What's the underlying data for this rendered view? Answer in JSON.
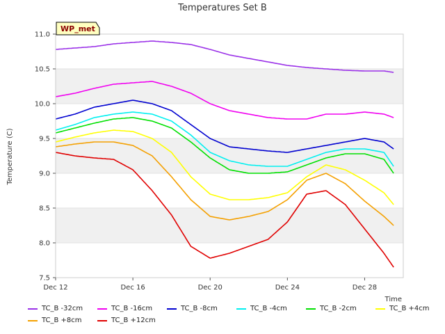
{
  "chart_data": {
    "type": "line",
    "title": "Temperatures Set B",
    "xlabel": "Time",
    "ylabel": "Temperature (C)",
    "annotation": "WP_met",
    "x_tick_labels": [
      "Dec 12",
      "Dec 16",
      "Dec 20",
      "Dec 24",
      "Dec 28"
    ],
    "x_tick_values": [
      0,
      4,
      8,
      12,
      16
    ],
    "xlim": [
      0,
      18
    ],
    "ylim": [
      7.5,
      11.0
    ],
    "y_ticks": [
      7.5,
      8.0,
      8.5,
      9.0,
      9.5,
      10.0,
      10.5,
      11.0
    ],
    "grid": "horizontal bands",
    "legend_position": "bottom",
    "x": [
      0,
      1,
      2,
      3,
      4,
      5,
      6,
      7,
      8,
      9,
      10,
      11,
      12,
      13,
      14,
      15,
      16,
      17,
      17.5
    ],
    "series": [
      {
        "name": "TC_B -32cm",
        "color": "#9a30e8",
        "values": [
          10.78,
          10.8,
          10.82,
          10.86,
          10.88,
          10.9,
          10.88,
          10.85,
          10.78,
          10.7,
          10.65,
          10.6,
          10.55,
          10.52,
          10.5,
          10.48,
          10.47,
          10.47,
          10.45
        ]
      },
      {
        "name": "TC_B -16cm",
        "color": "#f000f0",
        "values": [
          10.1,
          10.15,
          10.22,
          10.28,
          10.3,
          10.32,
          10.25,
          10.15,
          10.0,
          9.9,
          9.85,
          9.8,
          9.78,
          9.78,
          9.85,
          9.85,
          9.88,
          9.85,
          9.8
        ]
      },
      {
        "name": "TC_B -8cm",
        "color": "#0000d0",
        "values": [
          9.78,
          9.85,
          9.95,
          10.0,
          10.05,
          10.0,
          9.9,
          9.7,
          9.5,
          9.38,
          9.35,
          9.32,
          9.3,
          9.35,
          9.4,
          9.45,
          9.5,
          9.45,
          9.35
        ]
      },
      {
        "name": "TC_B -4cm",
        "color": "#00f0f0",
        "values": [
          9.62,
          9.7,
          9.8,
          9.85,
          9.88,
          9.85,
          9.75,
          9.55,
          9.3,
          9.18,
          9.12,
          9.1,
          9.1,
          9.2,
          9.3,
          9.35,
          9.35,
          9.3,
          9.1
        ]
      },
      {
        "name": "TC_B -2cm",
        "color": "#00e000",
        "values": [
          9.58,
          9.65,
          9.72,
          9.78,
          9.8,
          9.75,
          9.65,
          9.45,
          9.22,
          9.05,
          9.0,
          9.0,
          9.02,
          9.12,
          9.22,
          9.28,
          9.28,
          9.2,
          9.0
        ]
      },
      {
        "name": "TC_B +4cm",
        "color": "#ffff00",
        "values": [
          9.45,
          9.52,
          9.58,
          9.62,
          9.6,
          9.5,
          9.3,
          8.95,
          8.7,
          8.62,
          8.62,
          8.65,
          8.72,
          8.95,
          9.12,
          9.05,
          8.9,
          8.72,
          8.55
        ]
      },
      {
        "name": "TC_B +8cm",
        "color": "#f4a000",
        "values": [
          9.38,
          9.42,
          9.45,
          9.45,
          9.4,
          9.25,
          8.95,
          8.62,
          8.38,
          8.33,
          8.38,
          8.45,
          8.62,
          8.9,
          9.0,
          8.85,
          8.6,
          8.38,
          8.25
        ]
      },
      {
        "name": "TC_B +12cm",
        "color": "#e00000",
        "values": [
          9.3,
          9.25,
          9.22,
          9.2,
          9.05,
          8.75,
          8.4,
          7.95,
          7.78,
          7.85,
          7.95,
          8.05,
          8.3,
          8.7,
          8.75,
          8.55,
          8.2,
          7.85,
          7.65
        ]
      }
    ]
  }
}
